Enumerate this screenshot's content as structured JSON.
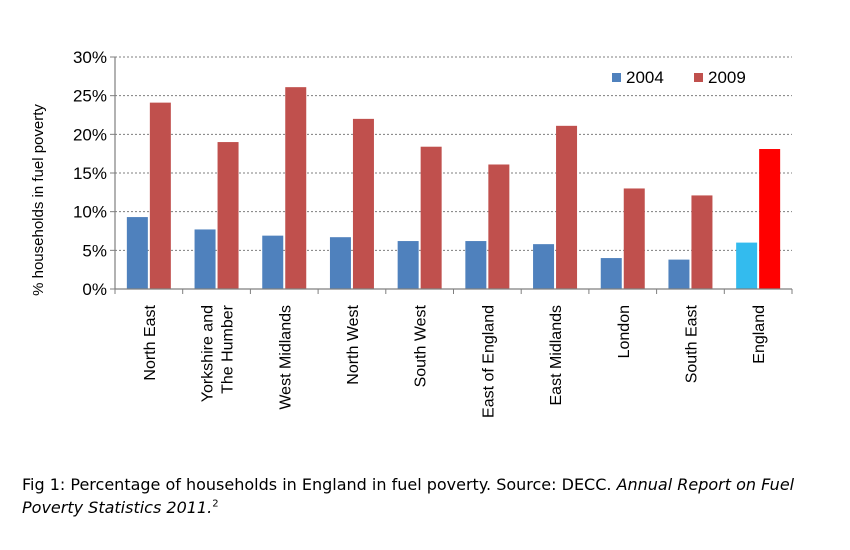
{
  "chart_data": {
    "type": "bar",
    "ylabel": "% households in fuel poverty",
    "xlabel": "",
    "ylim": [
      0,
      30
    ],
    "yticks": [
      0,
      5,
      10,
      15,
      20,
      25,
      30
    ],
    "ytick_labels": [
      "0%",
      "5%",
      "10%",
      "15%",
      "20%",
      "25%",
      "30%"
    ],
    "grid": true,
    "legend": "top-right",
    "categories": [
      [
        "North East"
      ],
      [
        "Yorkshire and",
        "The Humber"
      ],
      [
        "West Midlands"
      ],
      [
        "North West"
      ],
      [
        "South West"
      ],
      [
        "East of England"
      ],
      [
        "East Midlands"
      ],
      [
        "London"
      ],
      [
        "South East"
      ],
      [
        "England"
      ]
    ],
    "series": [
      {
        "name": "2004",
        "color": "#4f81bd",
        "highlight_color": "#33bbee",
        "values": [
          9.3,
          7.7,
          6.9,
          6.7,
          6.2,
          6.2,
          5.8,
          4.0,
          3.8,
          6.0
        ]
      },
      {
        "name": "2009",
        "color": "#c0504d",
        "highlight_color": "#ff0000",
        "values": [
          24.1,
          19.0,
          26.1,
          22.0,
          18.4,
          16.1,
          21.1,
          13.0,
          12.1,
          18.1
        ]
      }
    ],
    "highlight_index": 9
  },
  "caption": {
    "prefix": "Fig 1: Percentage of households in England in fuel poverty. Source: DECC. ",
    "italic": "Annual Report on Fuel Poverty Statistics 2011.",
    "footnote": "2"
  }
}
